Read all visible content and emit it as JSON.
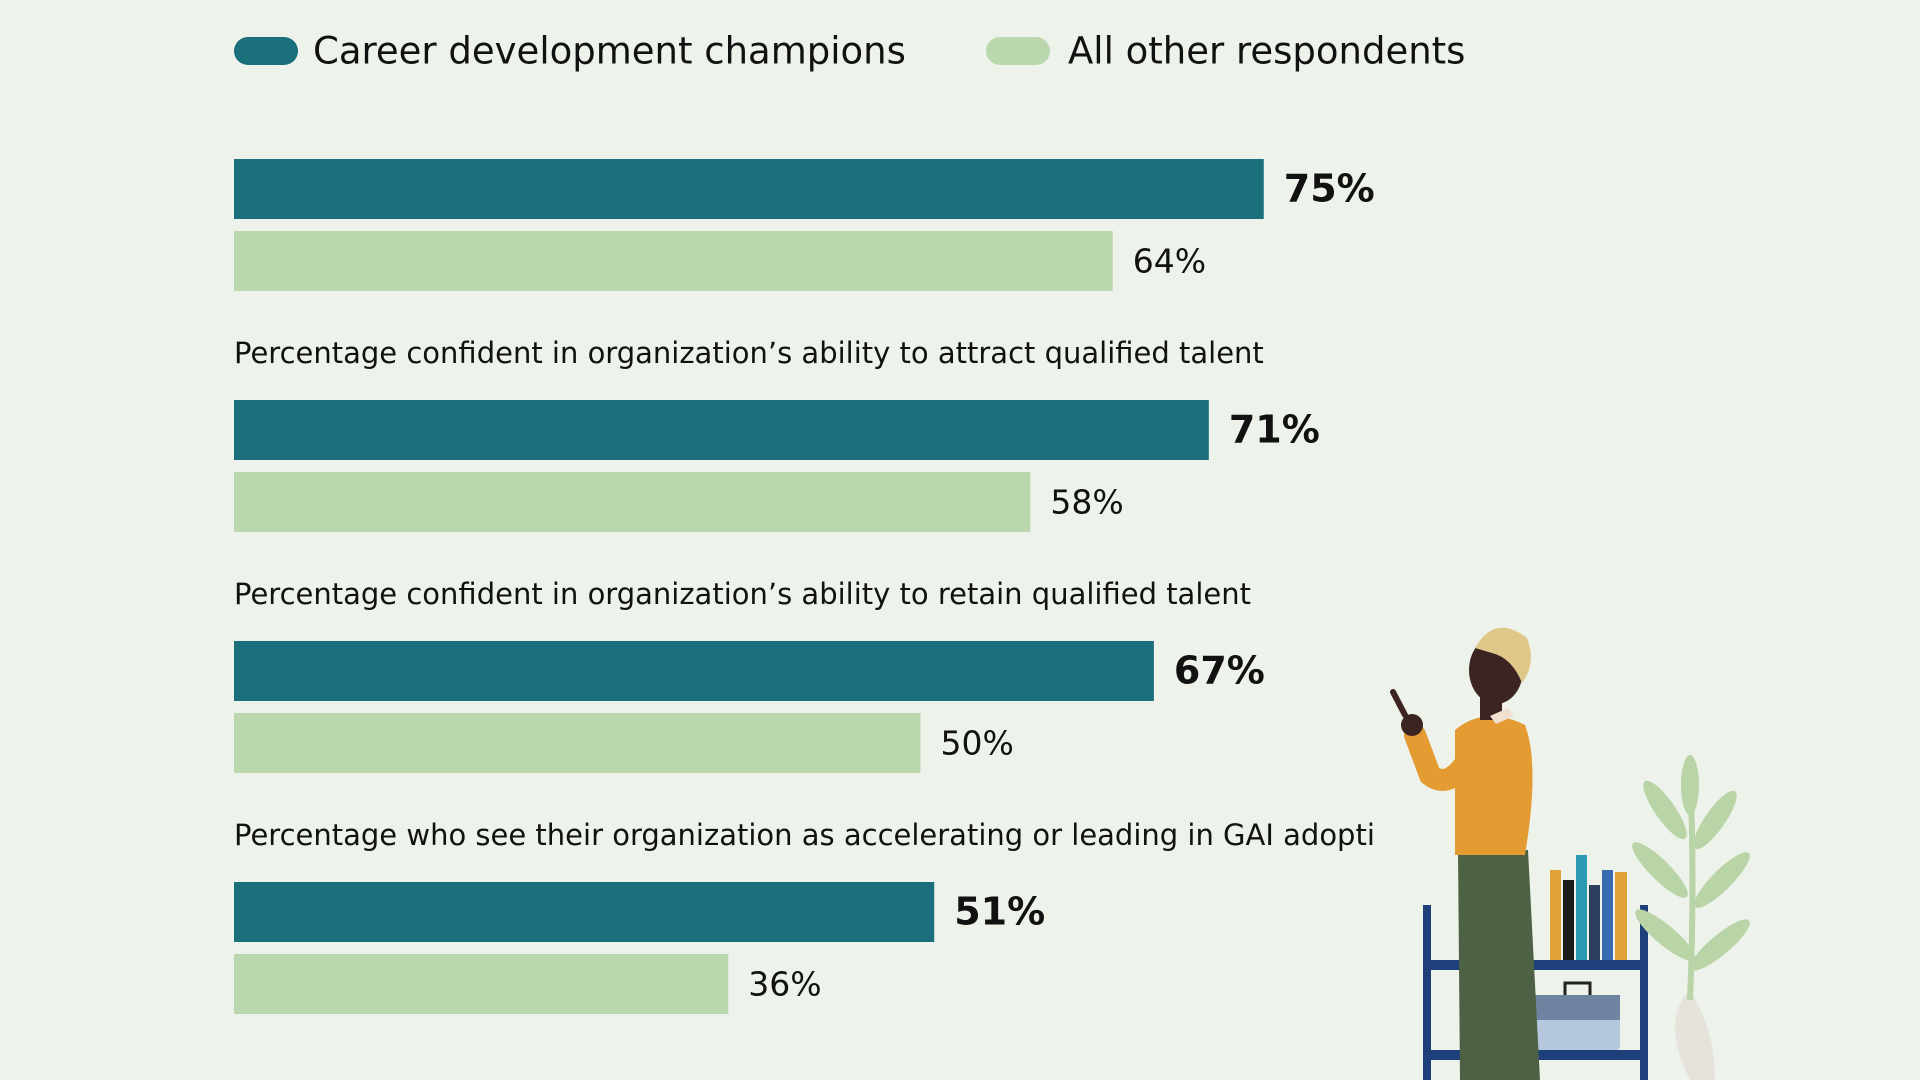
{
  "chart_data": {
    "type": "bar",
    "orientation": "horizontal",
    "legend": "top-left",
    "categories": [
      null,
      "Percentage confident in organization’s ability to attract qualified talent",
      "Percentage confident in organization’s ability to retain qualified talent",
      "Percentage who see their organization as accelerating or leading in GAI adopti"
    ],
    "series": [
      {
        "name": "Career development champions",
        "color": "#1b6e7b",
        "values": [
          75,
          71,
          67,
          51
        ],
        "value_labels": [
          "75%",
          "71%",
          "67%",
          "51%"
        ]
      },
      {
        "name": "All other respondents",
        "color": "#bad7ae",
        "values": [
          64,
          58,
          50,
          36
        ],
        "value_labels": [
          "64%",
          "58%",
          "50%",
          "36%"
        ]
      }
    ]
  }
}
